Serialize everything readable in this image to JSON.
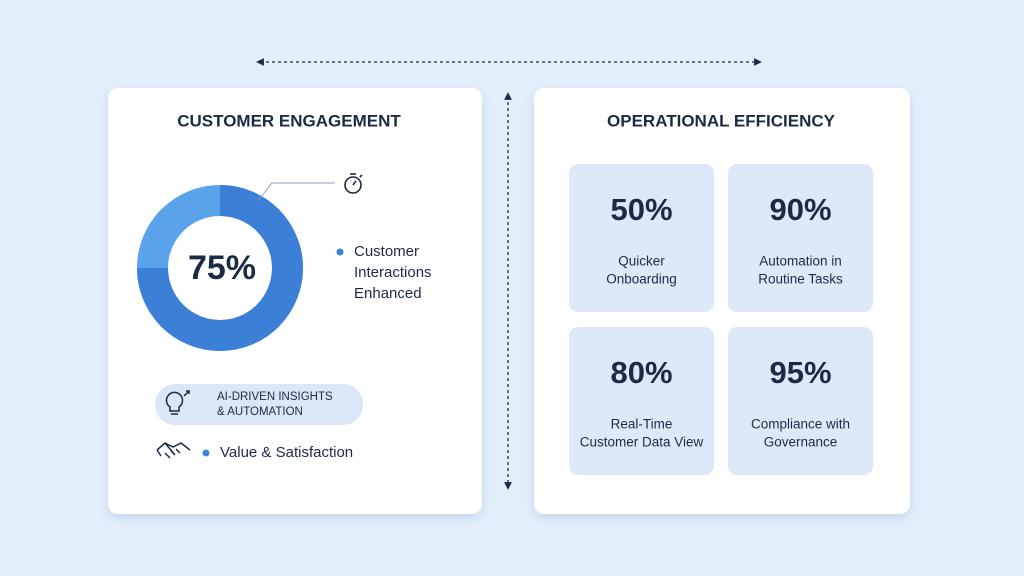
{
  "left": {
    "title": "CUSTOMER ENGAGEMENT",
    "donut": {
      "value": 75,
      "label": "75%"
    },
    "caption": [
      "Customer",
      "Interactions",
      "Enhanced"
    ],
    "pill": [
      "AI-DRIVEN INSIGHTS",
      "& AUTOMATION"
    ],
    "footer": "Value & Satisfaction"
  },
  "right": {
    "title": "OPERATIONAL EFFICIENCY",
    "tiles": [
      {
        "value": "50%",
        "label": [
          "Quicker",
          "Onboarding"
        ]
      },
      {
        "value": "90%",
        "label": [
          "Automation in",
          "Routine Tasks"
        ]
      },
      {
        "value": "80%",
        "label": [
          "Real-Time",
          "Customer Data View"
        ]
      },
      {
        "value": "95%",
        "label": [
          "Compliance with",
          "Governance"
        ]
      }
    ]
  }
}
